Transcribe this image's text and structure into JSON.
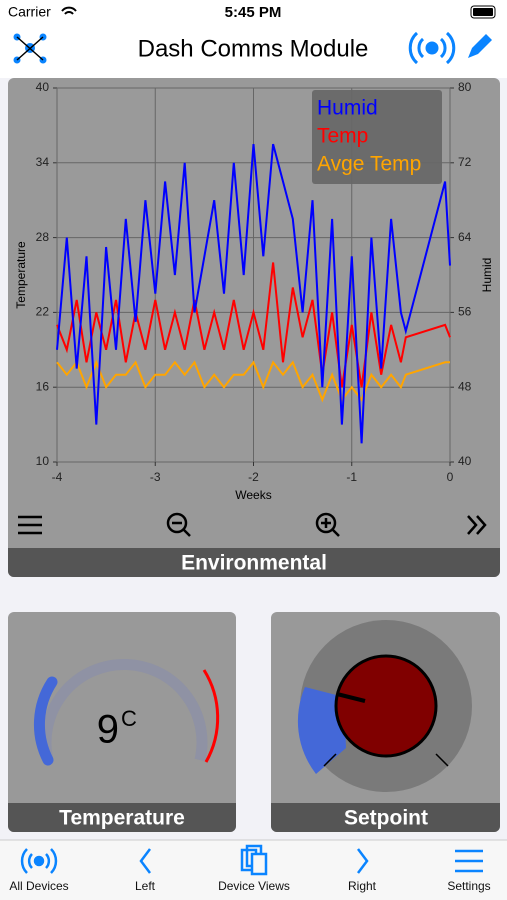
{
  "status_bar": {
    "carrier": "Carrier",
    "time": "5:45 PM"
  },
  "nav": {
    "title": "Dash Comms Module"
  },
  "chart_data": {
    "type": "line",
    "x": [
      -4,
      -3.9,
      -3.8,
      -3.7,
      -3.6,
      -3.5,
      -3.4,
      -3.3,
      -3.2,
      -3.1,
      -3,
      -2.9,
      -2.8,
      -2.7,
      -2.6,
      -2.5,
      -2.4,
      -2.3,
      -2.2,
      -2.1,
      -2,
      -1.9,
      -1.8,
      -1.7,
      -1.6,
      -1.5,
      -1.4,
      -1.3,
      -1.2,
      -1.1,
      -1,
      -0.9,
      -0.8,
      -0.7,
      -0.6,
      -0.5,
      -0.45,
      -0.05,
      0
    ],
    "series": [
      {
        "name": "Humid",
        "color": "#0000ff",
        "axis": "y2",
        "values": [
          52,
          64,
          50,
          62,
          44,
          63,
          52,
          66,
          55,
          68,
          58,
          70,
          60,
          72,
          56,
          62,
          68,
          58,
          72,
          60,
          74,
          62,
          74,
          70,
          66,
          56,
          68,
          48,
          66,
          44,
          62,
          42,
          64,
          50,
          66,
          56,
          54,
          70,
          61
        ]
      },
      {
        "name": "Temp",
        "color": "#ff0000",
        "values": [
          21,
          19,
          23,
          18,
          22,
          19,
          23,
          18,
          22,
          19,
          23,
          19,
          22,
          19,
          23,
          19,
          22,
          19,
          23,
          19,
          22,
          19,
          26,
          18,
          24,
          20,
          23,
          17,
          22,
          16,
          21,
          16,
          22,
          17,
          21,
          18,
          20,
          21,
          20
        ]
      },
      {
        "name": "Avge Temp",
        "color": "#ffa500",
        "values": [
          18,
          17,
          18,
          16,
          18,
          16,
          17,
          17,
          18,
          16,
          17,
          17,
          18,
          17,
          18,
          16,
          17,
          16,
          17,
          17,
          18,
          16,
          18,
          17,
          18,
          16,
          17,
          15,
          17,
          15,
          16,
          15,
          17,
          16,
          17,
          16,
          17,
          18,
          18
        ]
      }
    ],
    "xlim": [
      -4,
      0
    ],
    "xticks": [
      -4,
      -3,
      -2,
      -1,
      0
    ],
    "ylim": [
      10,
      40
    ],
    "yticks": [
      10,
      16,
      22,
      28,
      34,
      40
    ],
    "y2lim": [
      40,
      80
    ],
    "y2ticks": [
      40,
      48,
      56,
      64,
      72,
      80
    ],
    "xlabel": "Weeks",
    "ylabel": "Temperature",
    "y2label": "Humid",
    "grid": true,
    "legend": "top right"
  },
  "environmental_panel": {
    "title": "Environmental"
  },
  "temperature_gauge": {
    "value": 9,
    "unit": "C",
    "title": "Temperature"
  },
  "setpoint_gauge": {
    "title": "Setpoint"
  },
  "tabs": [
    "All Devices",
    "Left",
    "Device Views",
    "Right",
    "Settings"
  ]
}
